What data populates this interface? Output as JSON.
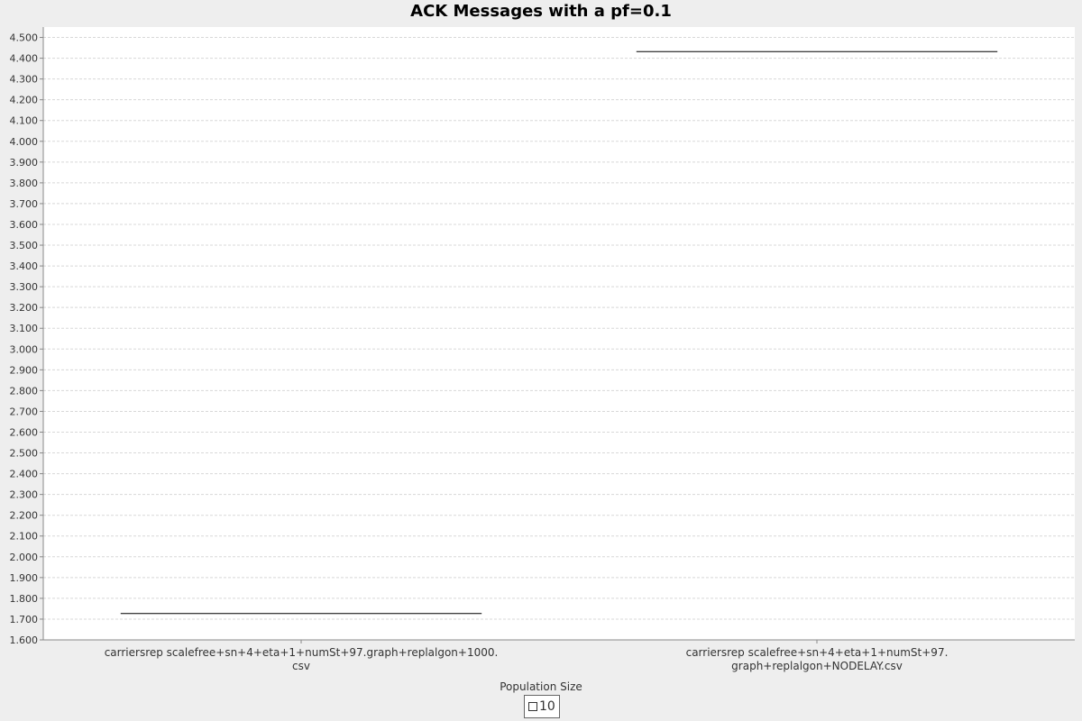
{
  "chart_data": {
    "type": "box",
    "title": "ACK Messages with a pf=0.1",
    "xlabel": "Population Size",
    "ylabel": "",
    "ylim": [
      1.6,
      4.55
    ],
    "y_ticks": [
      "1.600",
      "1.700",
      "1.800",
      "1.900",
      "2.000",
      "2.100",
      "2.200",
      "2.300",
      "2.400",
      "2.500",
      "2.600",
      "2.700",
      "2.800",
      "2.900",
      "3.000",
      "3.100",
      "3.200",
      "3.300",
      "3.400",
      "3.500",
      "3.600",
      "3.700",
      "3.800",
      "3.900",
      "4.000",
      "4.100",
      "4.200",
      "4.300",
      "4.400",
      "4.500"
    ],
    "categories": [
      [
        "carriersrep scalefree+sn+4+eta+1+numSt+97.graph+replalgon+1000.",
        "csv"
      ],
      [
        "carriersrep scalefree+sn+4+eta+1+numSt+97.",
        "graph+replalgon+NODELAY.csv"
      ]
    ],
    "series": [
      {
        "name": "10",
        "values": [
          1.727,
          4.432
        ]
      }
    ],
    "grid": true,
    "legend_position": "bottom"
  },
  "colors": {
    "background": "#eeeeee",
    "plot_background": "#ffffff",
    "gridline": "#d8d8d8",
    "axis": "#888888",
    "series_line": "#000000"
  }
}
